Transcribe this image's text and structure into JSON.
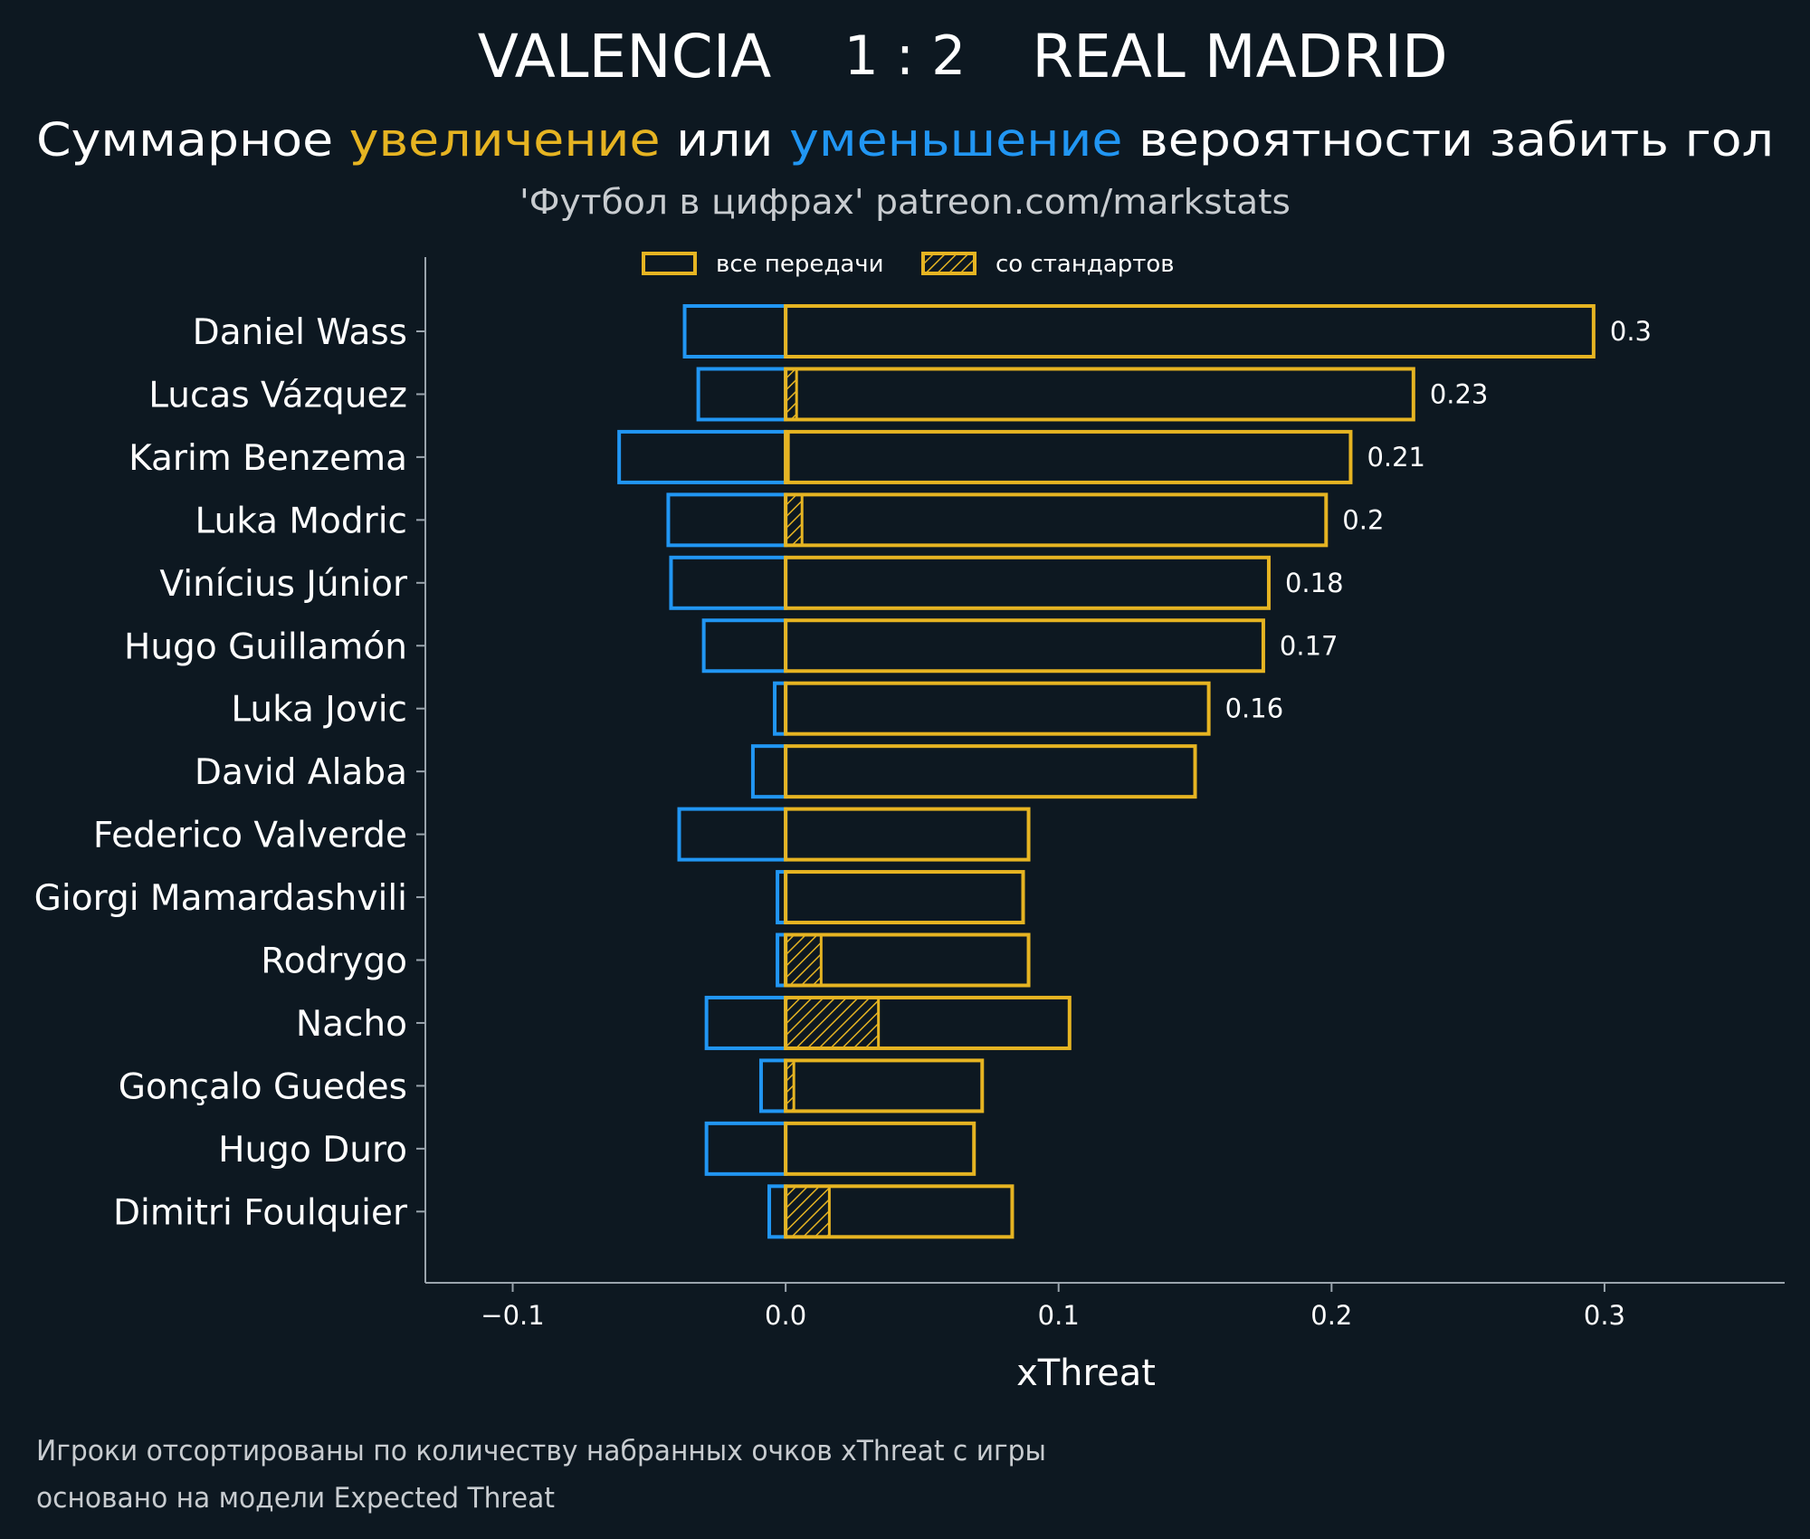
{
  "header": {
    "home_team": "VALENCIA",
    "score": "1 : 2",
    "away_team": "REAL MADRID",
    "subtitle_part1": "Суммарное ",
    "subtitle_increase": "увеличение",
    "subtitle_part2": " или ",
    "subtitle_decrease": "уменьшение",
    "subtitle_part3": " вероятности забить гол",
    "source": "'Футбол в цифрах' patreon.com/markstats"
  },
  "legend": {
    "all_passes": "все передачи",
    "set_pieces": "со стандартов",
    "placement": "top-center"
  },
  "footer": {
    "note1": "Игроки отсортированы по количеству набранных очков xThreat с игры",
    "note2": "основано на модели Expected Threat"
  },
  "colors": {
    "background": "#0d1821",
    "positive": "#e6b422",
    "negative": "#2196f3",
    "axis": "#9aa4ad"
  },
  "chart_data": {
    "type": "bar",
    "orientation": "horizontal",
    "xlabel": "xThreat",
    "xlim": [
      -0.132,
      0.366
    ],
    "xticks": [
      -0.1,
      0.0,
      0.1,
      0.2,
      0.3
    ],
    "xtick_labels": [
      "−0.1",
      "0.0",
      "0.1",
      "0.2",
      "0.3"
    ],
    "categories": [
      "Daniel Wass",
      "Lucas Vázquez",
      "Karim Benzema",
      "Luka Modric",
      "Vinícius Júnior",
      "Hugo Guillamón",
      "Luka Jovic",
      "David Alaba",
      "Federico Valverde",
      "Giorgi Mamardashvili",
      "Rodrygo",
      "Nacho",
      "Gonçalo Guedes",
      "Hugo Duro",
      "Dimitri Foulquier"
    ],
    "series": [
      {
        "name": "все передачи",
        "values": [
          0.296,
          0.23,
          0.207,
          0.198,
          0.177,
          0.175,
          0.155,
          0.15,
          0.089,
          0.087,
          0.089,
          0.104,
          0.072,
          0.069,
          0.083
        ]
      },
      {
        "name": "со стандартов",
        "values": [
          0.0,
          0.004,
          0.001,
          0.006,
          0.0,
          0.0,
          0.0,
          0.0,
          0.0,
          0.0,
          0.013,
          0.034,
          0.003,
          0.0,
          0.016
        ]
      },
      {
        "values": [
          -0.037,
          -0.032,
          -0.061,
          -0.043,
          -0.042,
          -0.03,
          -0.004,
          -0.012,
          -0.039,
          -0.003,
          -0.003,
          -0.029,
          -0.009,
          -0.029,
          -0.006
        ]
      }
    ],
    "data_labels": [
      "0.3",
      "0.23",
      "0.21",
      "0.2",
      "0.18",
      "0.17",
      "0.16",
      "",
      "",
      "",
      "",
      "",
      "",
      "",
      ""
    ],
    "grid": false
  }
}
